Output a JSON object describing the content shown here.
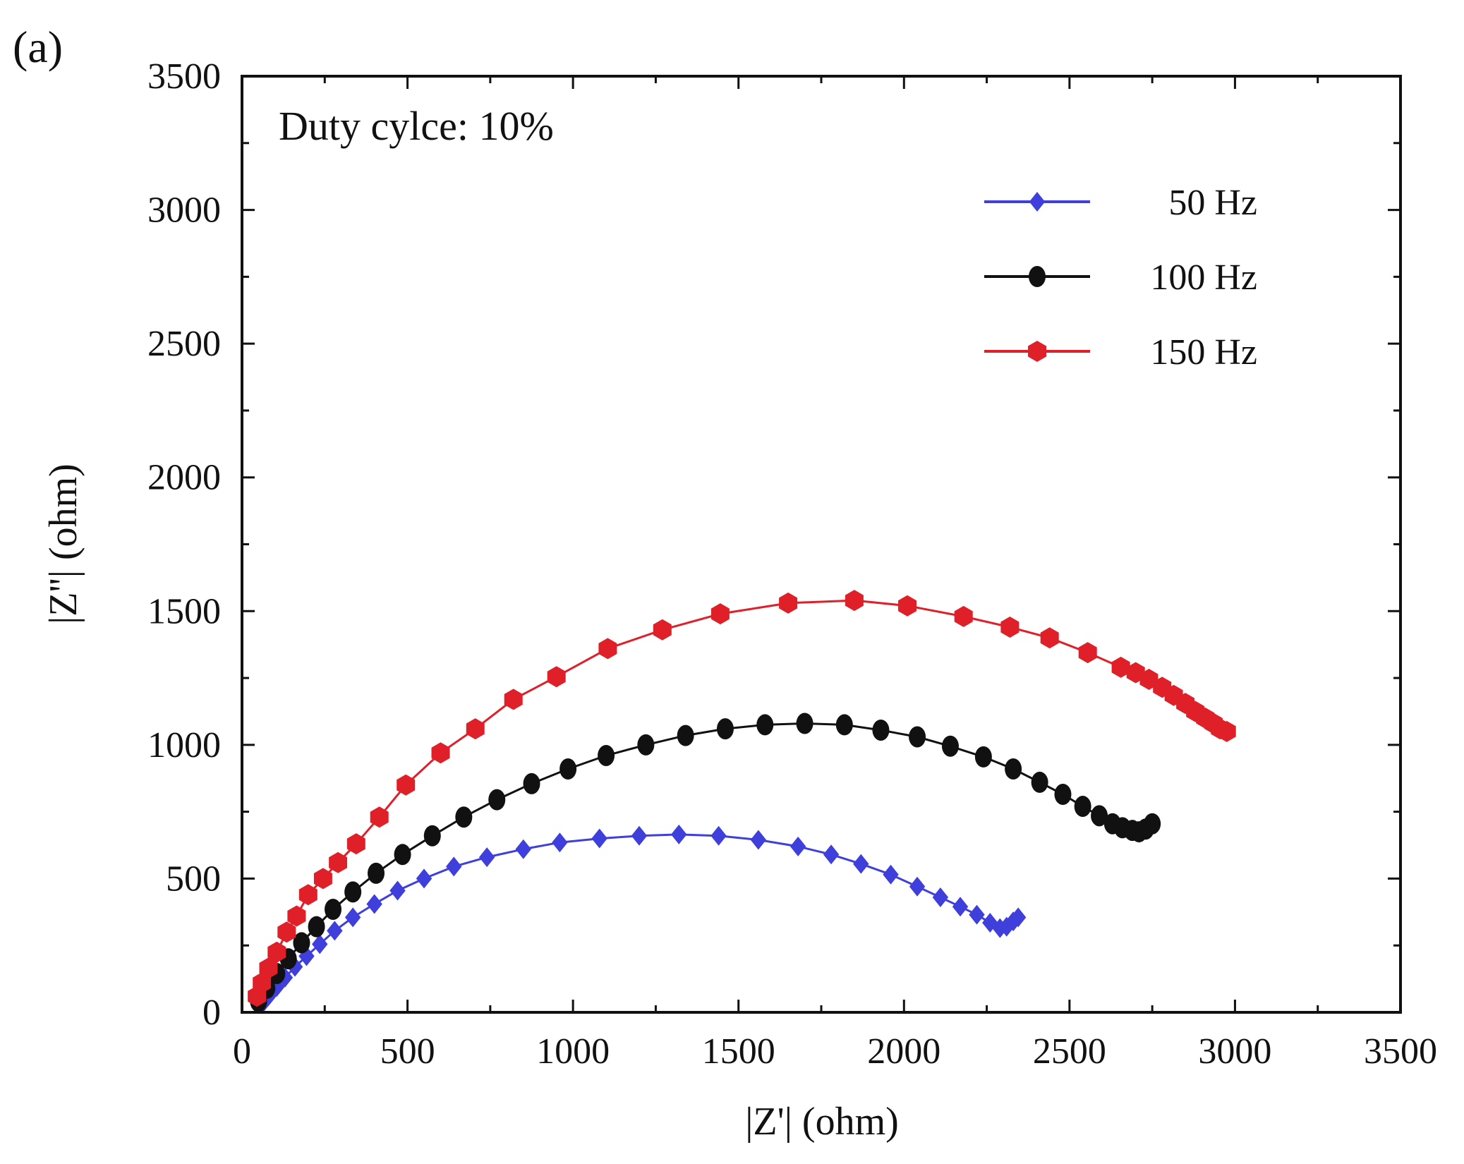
{
  "panel_label": "(a)",
  "chart_data": {
    "type": "scatter",
    "title": "",
    "annotation": "Duty cylce: 10%",
    "xlabel": "|Z'| (ohm)",
    "ylabel": "|Z''| (ohm)",
    "xlim": [
      0,
      3500
    ],
    "ylim": [
      0,
      3500
    ],
    "xticks": [
      0,
      500,
      1000,
      1500,
      2000,
      2500,
      3000,
      3500
    ],
    "yticks": [
      0,
      500,
      1000,
      1500,
      2000,
      2500,
      3000,
      3500
    ],
    "xtick_labels": [
      "0",
      "500",
      "1000",
      "1500",
      "2000",
      "2500",
      "3000",
      "3500"
    ],
    "ytick_labels": [
      "0",
      "500",
      "1000",
      "1500",
      "2000",
      "2500",
      "3000",
      "3500"
    ],
    "grid": false,
    "legend_position": "top-right",
    "series": [
      {
        "name": "50 Hz",
        "color": "#3f3fdc",
        "marker": "diamond",
        "x": [
          60,
          80,
          105,
          130,
          160,
          195,
          235,
          280,
          335,
          400,
          470,
          550,
          640,
          740,
          850,
          960,
          1080,
          1200,
          1320,
          1440,
          1560,
          1680,
          1780,
          1870,
          1960,
          2040,
          2110,
          2170,
          2220,
          2260,
          2290,
          2310,
          2330,
          2345
        ],
        "values": [
          30,
          60,
          95,
          130,
          170,
          210,
          255,
          305,
          355,
          405,
          455,
          500,
          545,
          580,
          610,
          635,
          650,
          660,
          665,
          660,
          645,
          620,
          590,
          555,
          515,
          470,
          430,
          395,
          365,
          335,
          315,
          320,
          340,
          355
        ]
      },
      {
        "name": "100 Hz",
        "color": "#111111",
        "marker": "circle",
        "x": [
          50,
          75,
          105,
          140,
          180,
          225,
          275,
          335,
          405,
          485,
          575,
          670,
          770,
          875,
          985,
          1100,
          1220,
          1340,
          1460,
          1580,
          1700,
          1820,
          1930,
          2040,
          2140,
          2240,
          2330,
          2410,
          2480,
          2540,
          2590,
          2630,
          2660,
          2690,
          2710,
          2730,
          2750
        ],
        "values": [
          40,
          90,
          145,
          200,
          260,
          320,
          385,
          450,
          520,
          590,
          660,
          730,
          795,
          855,
          910,
          960,
          1000,
          1035,
          1060,
          1075,
          1080,
          1075,
          1055,
          1030,
          995,
          955,
          910,
          860,
          815,
          770,
          735,
          705,
          690,
          680,
          675,
          685,
          705
        ]
      },
      {
        "name": "150 Hz",
        "color": "#e02028",
        "marker": "hexagon",
        "x": [
          45,
          60,
          80,
          105,
          135,
          165,
          200,
          245,
          290,
          345,
          415,
          495,
          600,
          705,
          820,
          950,
          1105,
          1270,
          1445,
          1650,
          1850,
          2010,
          2180,
          2320,
          2440,
          2555,
          2655,
          2700,
          2740,
          2780,
          2815,
          2850,
          2880,
          2910,
          2935,
          2955,
          2975
        ],
        "values": [
          60,
          110,
          165,
          225,
          300,
          360,
          440,
          500,
          560,
          630,
          730,
          850,
          970,
          1060,
          1170,
          1255,
          1360,
          1430,
          1490,
          1530,
          1540,
          1520,
          1480,
          1440,
          1400,
          1345,
          1290,
          1270,
          1245,
          1215,
          1185,
          1155,
          1125,
          1100,
          1080,
          1060,
          1050
        ]
      }
    ]
  }
}
